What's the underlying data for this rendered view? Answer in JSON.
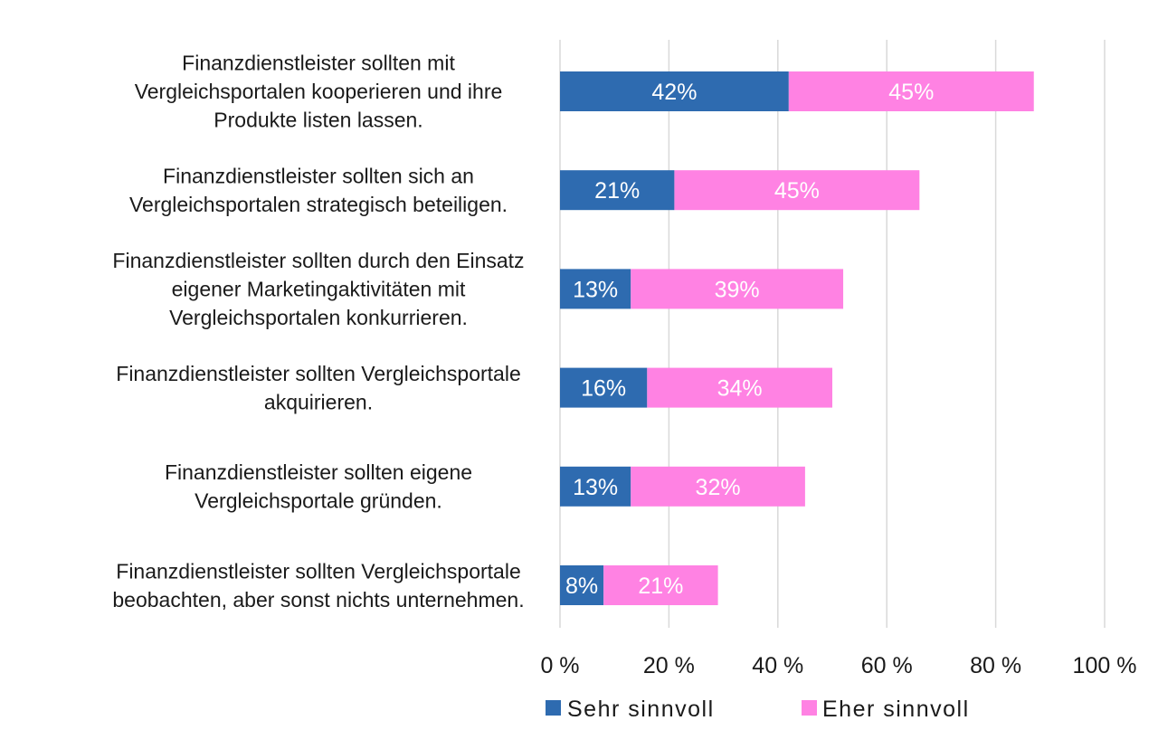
{
  "chart_data": {
    "type": "bar",
    "orientation": "horizontal",
    "stacked": true,
    "categories": [
      [
        "Finanzdienstleister sollten mit",
        "Vergleichsportalen kooperieren und ihre",
        "Produkte listen lassen."
      ],
      [
        "Finanzdienstleister sollten sich an",
        "Vergleichsportalen strategisch beteiligen."
      ],
      [
        "Finanzdienstleister sollten durch den Einsatz",
        "eigener Marketingaktivitäten mit",
        "Vergleichsportalen konkurrieren."
      ],
      [
        "Finanzdienstleister sollten Vergleichsportale",
        "akquirieren."
      ],
      [
        "Finanzdienstleister sollten eigene",
        "Vergleichsportale gründen."
      ],
      [
        "Finanzdienstleister sollten Vergleichsportale",
        "beobachten, aber sonst nichts unternehmen."
      ]
    ],
    "series": [
      {
        "name": "Sehr sinnvoll",
        "color": "#2E6BB0",
        "values": [
          42,
          21,
          13,
          16,
          13,
          8
        ],
        "labels": [
          "42%",
          "21%",
          "13%",
          "16%",
          "13%",
          "8%"
        ]
      },
      {
        "name": "Eher sinnvoll",
        "color": "#FF82E3",
        "values": [
          45,
          45,
          39,
          34,
          32,
          21
        ],
        "labels": [
          "45%",
          "45%",
          "39%",
          "34%",
          "32%",
          "21%"
        ]
      }
    ],
    "xlim": [
      0,
      100
    ],
    "xticks": [
      0,
      20,
      40,
      60,
      80,
      100
    ],
    "xtick_labels": [
      "0 %",
      "20 %",
      "40 %",
      "60 %",
      "80 %",
      "100 %"
    ],
    "grid": true,
    "legend": "bottom",
    "title": "",
    "xlabel": "",
    "ylabel": ""
  }
}
